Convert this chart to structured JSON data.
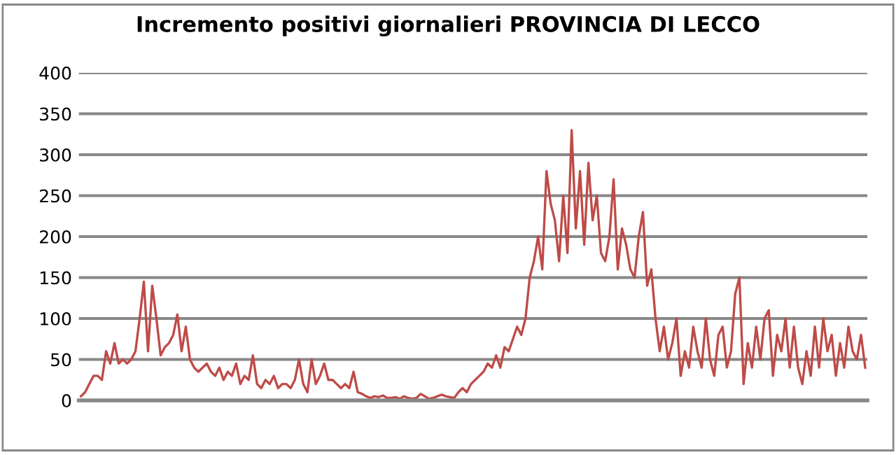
{
  "chart_data": {
    "type": "line",
    "title": "Incremento positivi giornalieri PROVINCIA DI LECCO",
    "categories": [
      null,
      null,
      null,
      null,
      null,
      null,
      null,
      null,
      null,
      null,
      null,
      null,
      null,
      null,
      null,
      null,
      null,
      null,
      null,
      null,
      null,
      null,
      null,
      null,
      null,
      null,
      null,
      null,
      null,
      null,
      null,
      null,
      null,
      null,
      null,
      null,
      null,
      null,
      null,
      null,
      null,
      null,
      null,
      null,
      null,
      null,
      null,
      null,
      null,
      null,
      null,
      null,
      null,
      null,
      null,
      null,
      null,
      null,
      null,
      null,
      null,
      null,
      null,
      null,
      null,
      null,
      null,
      null,
      null,
      null,
      null,
      null,
      null,
      null,
      null,
      null,
      null,
      null,
      null,
      null,
      null,
      null,
      null,
      null,
      null,
      null,
      null,
      null,
      null,
      null,
      null,
      null,
      null,
      null,
      null,
      null,
      null,
      null,
      null,
      null,
      null,
      null,
      null,
      null,
      null,
      null,
      null,
      null,
      null,
      null,
      null,
      null,
      null,
      null,
      null,
      null,
      null,
      null,
      null,
      null,
      null,
      null,
      null,
      null,
      null,
      null,
      null,
      null,
      null,
      null,
      null,
      null,
      null,
      null,
      null,
      null,
      null,
      null,
      null,
      null,
      null,
      null,
      null,
      null,
      null,
      null,
      null,
      null,
      null,
      null,
      null,
      null,
      null,
      null,
      null,
      null,
      null,
      null,
      null,
      null,
      null,
      null,
      null,
      null,
      null,
      null,
      null,
      null,
      null,
      null,
      null,
      null,
      null,
      null,
      null,
      null,
      null,
      null,
      null,
      null,
      null,
      null,
      null,
      null,
      null,
      null,
      null,
      null
    ],
    "series": [
      {
        "color": "#be4b48",
        "values": [
          5,
          10,
          20,
          30,
          30,
          25,
          60,
          45,
          70,
          45,
          50,
          45,
          50,
          60,
          100,
          145,
          60,
          140,
          100,
          55,
          65,
          70,
          80,
          105,
          60,
          90,
          50,
          40,
          35,
          40,
          45,
          35,
          30,
          40,
          25,
          35,
          30,
          45,
          20,
          30,
          25,
          55,
          20,
          15,
          25,
          20,
          30,
          15,
          20,
          20,
          15,
          25,
          50,
          20,
          10,
          50,
          20,
          30,
          45,
          25,
          25,
          20,
          15,
          20,
          15,
          35,
          10,
          8,
          5,
          3,
          5,
          4,
          6,
          3,
          3,
          4,
          2,
          5,
          3,
          2,
          3,
          8,
          5,
          2,
          3,
          5,
          7,
          5,
          4,
          3,
          10,
          15,
          10,
          20,
          25,
          30,
          35,
          45,
          40,
          55,
          40,
          65,
          60,
          75,
          90,
          80,
          100,
          150,
          170,
          200,
          160,
          280,
          240,
          220,
          170,
          250,
          180,
          330,
          210,
          280,
          190,
          290,
          220,
          250,
          180,
          170,
          200,
          270,
          160,
          210,
          190,
          160,
          150,
          200,
          230,
          140,
          160,
          100,
          60,
          90,
          50,
          70,
          100,
          30,
          60,
          40,
          90,
          60,
          40,
          100,
          50,
          30,
          80,
          90,
          40,
          60,
          130,
          150,
          20,
          70,
          40,
          90,
          50,
          100,
          110,
          30,
          80,
          60,
          100,
          40,
          90,
          40,
          20,
          60,
          30,
          90,
          40,
          100,
          60,
          80,
          30,
          70,
          40,
          90,
          60,
          50,
          80,
          40
        ]
      }
    ],
    "ylim": [
      0,
      400
    ],
    "yticks": [
      0,
      50,
      100,
      150,
      200,
      250,
      300,
      350,
      400
    ],
    "grid": "y",
    "tick_labels": "y"
  }
}
